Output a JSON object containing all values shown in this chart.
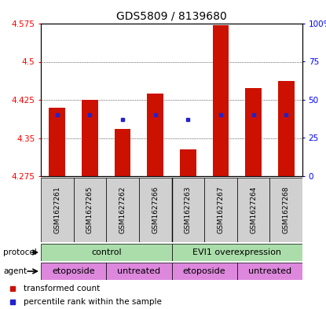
{
  "title": "GDS5809 / 8139680",
  "samples": [
    "GSM1627261",
    "GSM1627265",
    "GSM1627262",
    "GSM1627266",
    "GSM1627263",
    "GSM1627267",
    "GSM1627264",
    "GSM1627268"
  ],
  "bar_tops": [
    4.41,
    4.425,
    4.368,
    4.438,
    4.328,
    4.572,
    4.448,
    4.462
  ],
  "bar_bottoms": [
    4.275,
    4.275,
    4.275,
    4.275,
    4.275,
    4.275,
    4.275,
    4.275
  ],
  "blue_pct": [
    40,
    40,
    37,
    40,
    37,
    40,
    40,
    40
  ],
  "ylim_left": [
    4.275,
    4.575
  ],
  "ylim_right": [
    0,
    100
  ],
  "yticks_left": [
    4.275,
    4.35,
    4.425,
    4.5,
    4.575
  ],
  "yticks_right": [
    0,
    25,
    50,
    75,
    100
  ],
  "ytick_labels_left": [
    "4.275",
    "4.35",
    "4.425",
    "4.5",
    "4.575"
  ],
  "ytick_labels_right": [
    "0",
    "25",
    "50",
    "75",
    "100%"
  ],
  "bar_color": "#cc1100",
  "blue_color": "#2222cc",
  "bg_sample": "#d0d0d0",
  "proto_color": "#aaddaa",
  "agent_color": "#dd88dd",
  "protocol_labels": [
    "control",
    "EVI1 overexpression"
  ],
  "agent_labels": [
    "etoposide",
    "untreated",
    "etoposide",
    "untreated"
  ],
  "legend_items": [
    {
      "label": "transformed count",
      "color": "#cc1100"
    },
    {
      "label": "percentile rank within the sample",
      "color": "#2222cc"
    }
  ]
}
